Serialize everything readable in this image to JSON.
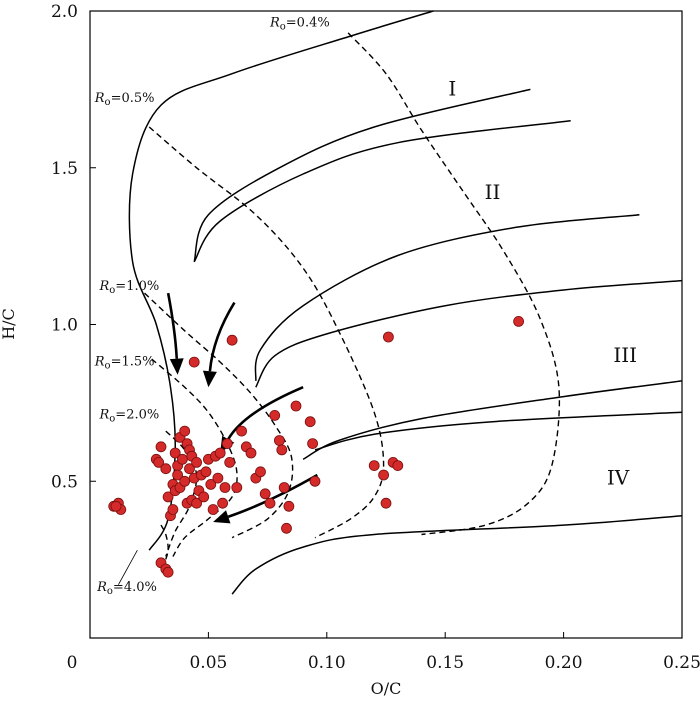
{
  "chart_data": {
    "type": "scatter",
    "xlabel": "O/C",
    "ylabel": "H/C",
    "xlim": [
      0,
      0.25
    ],
    "ylim": [
      0,
      2.0
    ],
    "x_ticks": [
      {
        "value": 0,
        "label": "0"
      },
      {
        "value": 0.05,
        "label": "0.05"
      },
      {
        "value": 0.1,
        "label": "0.10"
      },
      {
        "value": 0.15,
        "label": "0.15"
      },
      {
        "value": 0.2,
        "label": "0.20"
      },
      {
        "value": 0.25,
        "label": "0.25"
      }
    ],
    "y_ticks": [
      {
        "value": 0.5,
        "label": "0.5"
      },
      {
        "value": 1.0,
        "label": "1.0"
      },
      {
        "value": 1.5,
        "label": "1.5"
      },
      {
        "value": 2.0,
        "label": "2.0"
      }
    ],
    "kerogen_zones": [
      {
        "label": "I",
        "x": 0.153,
        "y": 1.73
      },
      {
        "label": "II",
        "x": 0.17,
        "y": 1.4
      },
      {
        "label": "III",
        "x": 0.226,
        "y": 0.88
      },
      {
        "label": "IV",
        "x": 0.223,
        "y": 0.49
      }
    ],
    "ro_labels": [
      {
        "prefix": "R",
        "sub": "o",
        "value": "=0.4%",
        "x": 0.076,
        "y": 1.95
      },
      {
        "prefix": "R",
        "sub": "o",
        "value": "=0.5%",
        "x": 0.002,
        "y": 1.71
      },
      {
        "prefix": "R",
        "sub": "o",
        "value": "=1.0%",
        "x": 0.004,
        "y": 1.11
      },
      {
        "prefix": "R",
        "sub": "o",
        "value": "=1.5%",
        "x": 0.002,
        "y": 0.87
      },
      {
        "prefix": "R",
        "sub": "o",
        "value": "=2.0%",
        "x": 0.004,
        "y": 0.7
      },
      {
        "prefix": "R",
        "sub": "o",
        "value": "=4.0%",
        "x": 0.003,
        "y": 0.15
      }
    ],
    "evolution_curves": [
      {
        "name": "type-I-curve",
        "points": [
          [
            0.025,
            0.28
          ],
          [
            0.033,
            0.38
          ],
          [
            0.036,
            0.6
          ],
          [
            0.034,
            0.8
          ],
          [
            0.028,
            1.0
          ],
          [
            0.018,
            1.2
          ],
          [
            0.018,
            1.48
          ],
          [
            0.03,
            1.7
          ],
          [
            0.06,
            1.8
          ],
          [
            0.11,
            1.92
          ],
          [
            0.145,
            2.0
          ]
        ]
      },
      {
        "name": "type-II-upper-curve",
        "points": [
          [
            0.044,
            1.2
          ],
          [
            0.05,
            1.35
          ],
          [
            0.08,
            1.5
          ],
          [
            0.12,
            1.63
          ],
          [
            0.186,
            1.75
          ]
        ]
      },
      {
        "name": "type-II-lower-curve",
        "points": [
          [
            0.044,
            1.2
          ],
          [
            0.055,
            1.33
          ],
          [
            0.09,
            1.48
          ],
          [
            0.13,
            1.58
          ],
          [
            0.203,
            1.65
          ]
        ]
      },
      {
        "name": "type-II-III-curve",
        "points": [
          [
            0.07,
            0.82
          ],
          [
            0.072,
            0.92
          ],
          [
            0.09,
            1.06
          ],
          [
            0.13,
            1.22
          ],
          [
            0.18,
            1.31
          ],
          [
            0.232,
            1.35
          ]
        ]
      },
      {
        "name": "type-III-upper-curve",
        "points": [
          [
            0.07,
            0.8
          ],
          [
            0.078,
            0.9
          ],
          [
            0.1,
            0.97
          ],
          [
            0.15,
            1.06
          ],
          [
            0.2,
            1.11
          ],
          [
            0.25,
            1.14
          ]
        ]
      },
      {
        "name": "type-III-lower-curve",
        "points": [
          [
            0.09,
            0.57
          ],
          [
            0.105,
            0.63
          ],
          [
            0.14,
            0.7
          ],
          [
            0.2,
            0.77
          ],
          [
            0.25,
            0.82
          ]
        ]
      },
      {
        "name": "type-IV-upper-curve",
        "points": [
          [
            0.095,
            0.6
          ],
          [
            0.12,
            0.65
          ],
          [
            0.17,
            0.69
          ],
          [
            0.25,
            0.72
          ]
        ]
      },
      {
        "name": "type-IV-lower-curve",
        "points": [
          [
            0.06,
            0.14
          ],
          [
            0.07,
            0.22
          ],
          [
            0.09,
            0.29
          ],
          [
            0.12,
            0.33
          ],
          [
            0.2,
            0.36
          ],
          [
            0.25,
            0.39
          ]
        ]
      }
    ],
    "maturity_lines": [
      {
        "name": "ro-0.4-line",
        "points": [
          [
            0.109,
            1.93
          ],
          [
            0.125,
            1.8
          ],
          [
            0.14,
            1.62
          ],
          [
            0.158,
            1.42
          ],
          [
            0.175,
            1.23
          ],
          [
            0.19,
            1.02
          ],
          [
            0.198,
            0.8
          ],
          [
            0.195,
            0.55
          ],
          [
            0.185,
            0.43
          ],
          [
            0.167,
            0.36
          ],
          [
            0.14,
            0.33
          ]
        ]
      },
      {
        "name": "ro-0.5-line",
        "points": [
          [
            0.025,
            1.63
          ],
          [
            0.045,
            1.5
          ],
          [
            0.07,
            1.35
          ],
          [
            0.09,
            1.18
          ],
          [
            0.105,
            0.98
          ],
          [
            0.12,
            0.72
          ],
          [
            0.124,
            0.55
          ],
          [
            0.12,
            0.45
          ],
          [
            0.11,
            0.38
          ],
          [
            0.095,
            0.32
          ]
        ]
      },
      {
        "name": "ro-1.0-line",
        "points": [
          [
            0.023,
            1.1
          ],
          [
            0.04,
            0.98
          ],
          [
            0.055,
            0.88
          ],
          [
            0.068,
            0.78
          ],
          [
            0.078,
            0.68
          ],
          [
            0.085,
            0.58
          ],
          [
            0.084,
            0.47
          ],
          [
            0.075,
            0.38
          ],
          [
            0.06,
            0.32
          ]
        ]
      },
      {
        "name": "ro-1.5-line",
        "points": [
          [
            0.026,
            0.89
          ],
          [
            0.04,
            0.8
          ],
          [
            0.05,
            0.72
          ],
          [
            0.058,
            0.62
          ],
          [
            0.062,
            0.53
          ],
          [
            0.06,
            0.45
          ],
          [
            0.05,
            0.38
          ],
          [
            0.04,
            0.32
          ],
          [
            0.035,
            0.26
          ]
        ]
      },
      {
        "name": "ro-2.0-line",
        "points": [
          [
            0.032,
            0.66
          ],
          [
            0.04,
            0.6
          ],
          [
            0.045,
            0.52
          ],
          [
            0.042,
            0.42
          ],
          [
            0.036,
            0.34
          ],
          [
            0.032,
            0.26
          ]
        ]
      },
      {
        "name": "ro-4.0-line",
        "points": [
          [
            0.03,
            0.36
          ],
          [
            0.032,
            0.33
          ],
          [
            0.033,
            0.28
          ],
          [
            0.031,
            0.23
          ]
        ]
      }
    ],
    "trend_arrows": [
      {
        "from": [
          0.033,
          1.1
        ],
        "ctrl": [
          0.036,
          0.98
        ],
        "to": [
          0.037,
          0.84
        ]
      },
      {
        "from": [
          0.061,
          1.07
        ],
        "ctrl": [
          0.052,
          0.96
        ],
        "to": [
          0.05,
          0.8
        ]
      },
      {
        "from": [
          0.09,
          0.8
        ],
        "ctrl": [
          0.065,
          0.72
        ],
        "to": [
          0.055,
          0.59
        ]
      },
      {
        "from": [
          0.096,
          0.52
        ],
        "ctrl": [
          0.075,
          0.43
        ],
        "to": [
          0.052,
          0.37
        ]
      }
    ],
    "series": [
      {
        "type": "scatter",
        "points": [
          [
            0.01,
            0.42
          ],
          [
            0.012,
            0.43
          ],
          [
            0.013,
            0.41
          ],
          [
            0.011,
            0.42
          ],
          [
            0.028,
            0.57
          ],
          [
            0.029,
            0.56
          ],
          [
            0.03,
            0.61
          ],
          [
            0.032,
            0.54
          ],
          [
            0.033,
            0.45
          ],
          [
            0.034,
            0.39
          ],
          [
            0.035,
            0.49
          ],
          [
            0.035,
            0.41
          ],
          [
            0.036,
            0.59
          ],
          [
            0.036,
            0.47
          ],
          [
            0.037,
            0.55
          ],
          [
            0.037,
            0.52
          ],
          [
            0.038,
            0.64
          ],
          [
            0.038,
            0.48
          ],
          [
            0.039,
            0.57
          ],
          [
            0.04,
            0.66
          ],
          [
            0.04,
            0.5
          ],
          [
            0.041,
            0.62
          ],
          [
            0.041,
            0.43
          ],
          [
            0.042,
            0.6
          ],
          [
            0.042,
            0.54
          ],
          [
            0.043,
            0.58
          ],
          [
            0.043,
            0.44
          ],
          [
            0.044,
            0.51
          ],
          [
            0.044,
            0.88
          ],
          [
            0.045,
            0.56
          ],
          [
            0.045,
            0.43
          ],
          [
            0.046,
            0.47
          ],
          [
            0.047,
            0.52
          ],
          [
            0.048,
            0.45
          ],
          [
            0.049,
            0.53
          ],
          [
            0.05,
            0.57
          ],
          [
            0.051,
            0.49
          ],
          [
            0.052,
            0.41
          ],
          [
            0.053,
            0.58
          ],
          [
            0.054,
            0.51
          ],
          [
            0.055,
            0.59
          ],
          [
            0.056,
            0.43
          ],
          [
            0.057,
            0.48
          ],
          [
            0.058,
            0.62
          ],
          [
            0.059,
            0.56
          ],
          [
            0.06,
            0.95
          ],
          [
            0.062,
            0.48
          ],
          [
            0.064,
            0.66
          ],
          [
            0.066,
            0.61
          ],
          [
            0.068,
            0.59
          ],
          [
            0.07,
            0.51
          ],
          [
            0.072,
            0.53
          ],
          [
            0.074,
            0.46
          ],
          [
            0.076,
            0.43
          ],
          [
            0.078,
            0.71
          ],
          [
            0.08,
            0.63
          ],
          [
            0.081,
            0.6
          ],
          [
            0.082,
            0.48
          ],
          [
            0.083,
            0.35
          ],
          [
            0.084,
            0.42
          ],
          [
            0.087,
            0.74
          ],
          [
            0.093,
            0.69
          ],
          [
            0.094,
            0.62
          ],
          [
            0.095,
            0.5
          ],
          [
            0.03,
            0.24
          ],
          [
            0.032,
            0.22
          ],
          [
            0.033,
            0.21
          ],
          [
            0.12,
            0.55
          ],
          [
            0.124,
            0.52
          ],
          [
            0.125,
            0.43
          ],
          [
            0.126,
            0.96
          ],
          [
            0.128,
            0.56
          ],
          [
            0.13,
            0.55
          ],
          [
            0.181,
            1.01
          ]
        ]
      }
    ]
  }
}
